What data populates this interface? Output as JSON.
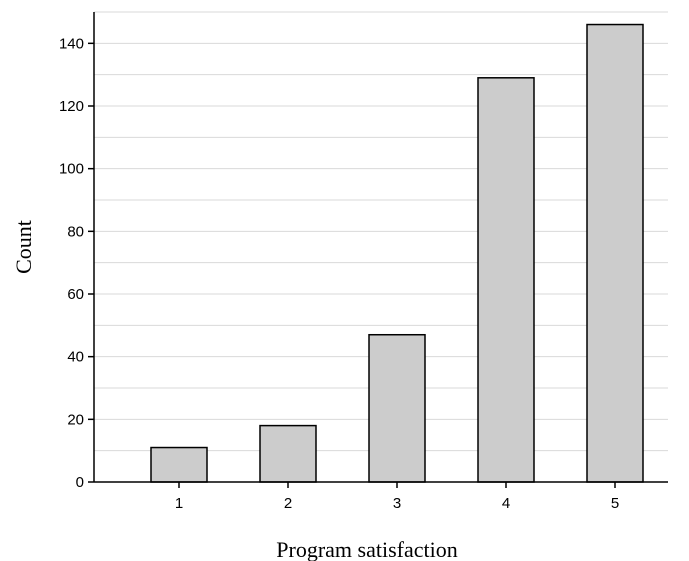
{
  "chart_data": {
    "type": "bar",
    "categories": [
      "1",
      "2",
      "3",
      "4",
      "5"
    ],
    "values": [
      11,
      18,
      47,
      129,
      146
    ],
    "title": "",
    "xlabel": "Program satisfaction",
    "ylabel": "Count",
    "ylim": [
      0,
      150
    ],
    "yticks": [
      0,
      20,
      40,
      60,
      80,
      100,
      120,
      140
    ],
    "grid": true,
    "grid_minor": true,
    "bar_color": "#cccccc",
    "bar_edge_color": "#000000"
  }
}
